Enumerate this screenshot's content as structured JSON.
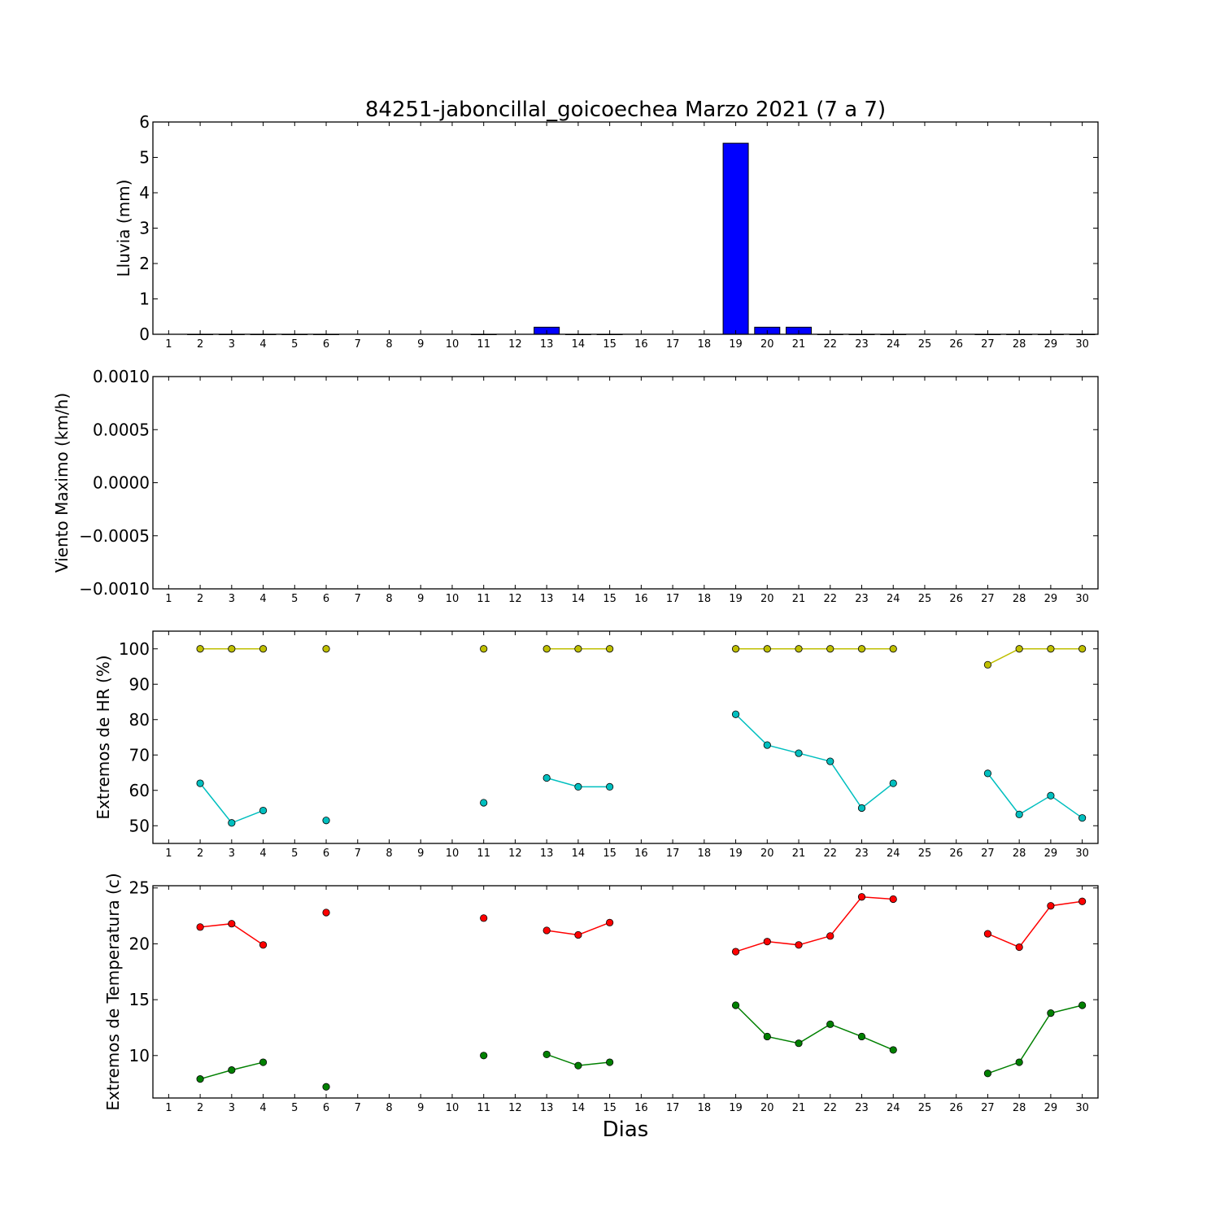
{
  "chart_data": [
    {
      "id": "rain",
      "type": "bar",
      "title": "84251-jaboncillal_goicoechea Marzo 2021  (7 a 7)",
      "ylabel": "Lluvia (mm)",
      "xlabel": "",
      "x": [
        1,
        2,
        3,
        4,
        5,
        6,
        7,
        8,
        9,
        10,
        11,
        12,
        13,
        14,
        15,
        16,
        17,
        18,
        19,
        20,
        21,
        22,
        23,
        24,
        25,
        26,
        27,
        28,
        29,
        30
      ],
      "xlim": [
        0.5,
        30.5
      ],
      "ylim": [
        0,
        6
      ],
      "yticks": [
        "0",
        "1",
        "2",
        "3",
        "4",
        "5",
        "6"
      ],
      "series": [
        {
          "color": "#0000ff",
          "values": [
            null,
            0,
            0,
            0,
            0,
            0,
            null,
            null,
            null,
            null,
            0,
            null,
            0.2,
            0,
            0,
            null,
            null,
            null,
            5.4,
            0.2,
            0.2,
            0,
            0,
            0,
            null,
            null,
            0,
            0,
            0,
            0
          ]
        }
      ]
    },
    {
      "id": "wind",
      "type": "line",
      "ylabel": "Viento Maximo (km/h)",
      "xlabel": "",
      "x": [
        1,
        2,
        3,
        4,
        5,
        6,
        7,
        8,
        9,
        10,
        11,
        12,
        13,
        14,
        15,
        16,
        17,
        18,
        19,
        20,
        21,
        22,
        23,
        24,
        25,
        26,
        27,
        28,
        29,
        30
      ],
      "xlim": [
        0.5,
        30.5
      ],
      "ylim": [
        -0.001,
        0.001
      ],
      "yticks": [
        "−0.0010",
        "−0.0005",
        "0.0000",
        "0.0005",
        "0.0010"
      ],
      "series": []
    },
    {
      "id": "hr",
      "type": "line",
      "ylabel": "Extremos de HR (%)",
      "xlabel": "",
      "x": [
        1,
        2,
        3,
        4,
        5,
        6,
        7,
        8,
        9,
        10,
        11,
        12,
        13,
        14,
        15,
        16,
        17,
        18,
        19,
        20,
        21,
        22,
        23,
        24,
        25,
        26,
        27,
        28,
        29,
        30
      ],
      "xlim": [
        0.5,
        30.5
      ],
      "ylim": [
        45,
        105
      ],
      "yticks": [
        "50",
        "60",
        "70",
        "80",
        "90",
        "100"
      ],
      "series": [
        {
          "color": "#bfbf00",
          "values": [
            null,
            100,
            100,
            100,
            null,
            100,
            null,
            null,
            null,
            null,
            100,
            null,
            100,
            100,
            100,
            null,
            null,
            null,
            100,
            100,
            100,
            100,
            100,
            100,
            null,
            null,
            95.5,
            100,
            100,
            100
          ]
        },
        {
          "color": "#00bfbf",
          "values": [
            null,
            62,
            50.8,
            54.3,
            null,
            51.5,
            null,
            null,
            null,
            null,
            56.5,
            null,
            63.5,
            61,
            61,
            null,
            null,
            null,
            81.5,
            72.8,
            70.5,
            68.2,
            55,
            62,
            null,
            null,
            64.8,
            53.2,
            58.5,
            52.2
          ]
        }
      ]
    },
    {
      "id": "temp",
      "type": "line",
      "ylabel": "Extremos de Temperatura (c)",
      "xlabel": "Dias",
      "x": [
        1,
        2,
        3,
        4,
        5,
        6,
        7,
        8,
        9,
        10,
        11,
        12,
        13,
        14,
        15,
        16,
        17,
        18,
        19,
        20,
        21,
        22,
        23,
        24,
        25,
        26,
        27,
        28,
        29,
        30
      ],
      "xlim": [
        0.5,
        30.5
      ],
      "ylim": [
        6.2,
        25.2
      ],
      "yticks": [
        "10",
        "15",
        "20",
        "25"
      ],
      "series": [
        {
          "color": "#ff0000",
          "values": [
            null,
            21.5,
            21.8,
            19.9,
            null,
            22.8,
            null,
            null,
            null,
            null,
            22.3,
            null,
            21.2,
            20.8,
            21.9,
            null,
            null,
            null,
            19.3,
            20.2,
            19.9,
            20.7,
            24.2,
            24,
            null,
            null,
            20.9,
            19.7,
            23.4,
            23.8
          ]
        },
        {
          "color": "#008000",
          "values": [
            null,
            7.9,
            8.7,
            9.4,
            null,
            7.2,
            null,
            null,
            null,
            null,
            10,
            null,
            10.1,
            9.1,
            9.4,
            null,
            null,
            null,
            14.5,
            11.7,
            11.1,
            12.8,
            11.7,
            10.5,
            null,
            null,
            8.4,
            9.4,
            13.8,
            14.5
          ]
        }
      ]
    }
  ]
}
